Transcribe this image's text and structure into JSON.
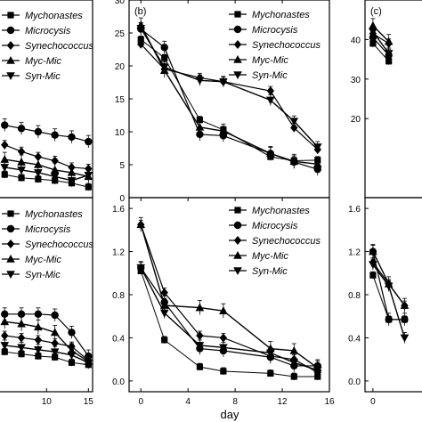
{
  "xlabel": "day",
  "marker_color": "#000000",
  "chart_data": [
    {
      "id": "left-top",
      "type": "line",
      "legend_position": "top-left",
      "x_ticks": [],
      "y_ticks": [],
      "series": [
        {
          "name": "Mychonastes",
          "marker": "square",
          "x": [
            5,
            7,
            9,
            11,
            13,
            15
          ],
          "y": [
            3.5,
            3.0,
            2.8,
            2.6,
            2.2,
            1.6
          ]
        },
        {
          "name": "Microcysis",
          "marker": "circle",
          "x": [
            5,
            7,
            9,
            11,
            13,
            15
          ],
          "y": [
            11.0,
            10.5,
            10.0,
            9.5,
            9.2,
            8.5
          ]
        },
        {
          "name": "Synechococcus",
          "marker": "diamond",
          "x": [
            5,
            7,
            9,
            11,
            13,
            15
          ],
          "y": [
            8.0,
            7.0,
            6.2,
            5.6,
            4.6,
            4.4
          ]
        },
        {
          "name": "Myc-Mic",
          "marker": "triangle-up",
          "x": [
            5,
            7,
            9,
            11,
            13,
            15
          ],
          "y": [
            5.8,
            5.4,
            5.0,
            4.2,
            3.8,
            3.2
          ]
        },
        {
          "name": "Syn-Mic",
          "marker": "triangle-down",
          "x": [
            5,
            7,
            9,
            11,
            13,
            15
          ],
          "y": [
            4.6,
            4.2,
            3.8,
            3.2,
            2.6,
            3.4
          ]
        }
      ]
    },
    {
      "id": "b",
      "panel_label": "(b)",
      "type": "line",
      "legend_position": "top-right",
      "ylim": [
        0,
        30
      ],
      "y_ticks": [
        "0",
        "5",
        "10",
        "15",
        "20",
        "25",
        "30"
      ],
      "series": [
        {
          "name": "Mychonastes",
          "marker": "square",
          "x": [
            0,
            2,
            5,
            7,
            11,
            13,
            15
          ],
          "y": [
            24.0,
            21.2,
            11.8,
            10.3,
            6.2,
            5.6,
            5.7
          ]
        },
        {
          "name": "Microcysis",
          "marker": "circle",
          "x": [
            0,
            2,
            5,
            7,
            11,
            13,
            15
          ],
          "y": [
            25.6,
            22.8,
            9.6,
            9.4,
            6.7,
            5.4,
            4.3
          ]
        },
        {
          "name": "Synechococcus",
          "marker": "diamond",
          "x": [
            0,
            2,
            5,
            7,
            11,
            13,
            15
          ],
          "y": [
            23.3,
            19.5,
            18.2,
            17.6,
            16.2,
            10.6,
            7.3
          ]
        },
        {
          "name": "Myc-Mic",
          "marker": "triangle-up",
          "x": [
            0,
            2,
            5,
            7,
            11,
            13,
            15
          ],
          "y": [
            26.2,
            19.3,
            10.7,
            10.1,
            6.7,
            5.5,
            5.1
          ]
        },
        {
          "name": "Syn-Mic",
          "marker": "triangle-down",
          "x": [
            0,
            2,
            5,
            7,
            11,
            13,
            15
          ],
          "y": [
            25.7,
            19.8,
            17.8,
            17.6,
            14.8,
            11.6,
            7.7
          ]
        }
      ]
    },
    {
      "id": "c",
      "panel_label": "(c)",
      "type": "line",
      "y_ticks": [
        "20",
        "30",
        "40"
      ],
      "series": [
        {
          "name": "Mychonastes",
          "marker": "square",
          "x": [
            0,
            2
          ],
          "y": [
            39.0,
            34.5
          ]
        },
        {
          "name": "Microcysis",
          "marker": "circle",
          "x": [
            0,
            2
          ],
          "y": [
            40.5,
            36.0
          ]
        },
        {
          "name": "Synechococcus",
          "marker": "diamond",
          "x": [
            0,
            2
          ],
          "y": [
            41.5,
            39.0
          ]
        },
        {
          "name": "Myc-Mic",
          "marker": "triangle-up",
          "x": [
            0,
            2
          ],
          "y": [
            43.5,
            39.5
          ]
        },
        {
          "name": "Syn-Mic",
          "marker": "triangle-down",
          "x": [
            0,
            2
          ],
          "y": [
            42.0,
            36.5
          ]
        }
      ]
    },
    {
      "id": "left-bottom",
      "type": "line",
      "legend_position": "top-left",
      "x_ticks": [
        "10",
        "15"
      ],
      "series": [
        {
          "name": "Mychonastes",
          "marker": "square",
          "x": [
            5,
            7,
            9,
            11,
            13,
            15
          ],
          "y": [
            0.27,
            0.25,
            0.23,
            0.22,
            0.17,
            0.15
          ]
        },
        {
          "name": "Microcysis",
          "marker": "circle",
          "x": [
            5,
            7,
            9,
            11,
            13,
            15
          ],
          "y": [
            0.62,
            0.62,
            0.62,
            0.61,
            0.45,
            0.23
          ]
        },
        {
          "name": "Synechococcus",
          "marker": "diamond",
          "x": [
            5,
            7,
            9,
            11,
            13,
            15
          ],
          "y": [
            0.42,
            0.4,
            0.38,
            0.35,
            0.32,
            0.19
          ]
        },
        {
          "name": "Myc-Mic",
          "marker": "triangle-up",
          "x": [
            5,
            7,
            9,
            11,
            13,
            15
          ],
          "y": [
            0.55,
            0.53,
            0.5,
            0.45,
            0.28,
            0.18
          ]
        },
        {
          "name": "Syn-Mic",
          "marker": "triangle-down",
          "x": [
            5,
            7,
            9,
            11,
            13,
            15
          ],
          "y": [
            0.33,
            0.31,
            0.29,
            0.27,
            0.24,
            0.17
          ]
        }
      ]
    },
    {
      "id": "e",
      "type": "line",
      "legend_position": "top-right",
      "ylim": [
        -0.1,
        1.7
      ],
      "xlim": [
        -1,
        16
      ],
      "y_ticks": [
        "0.0",
        "0.4",
        "0.8",
        "1.2",
        "1.6"
      ],
      "x_ticks": [
        "0",
        "4",
        "8",
        "12",
        "16"
      ],
      "series": [
        {
          "name": "Mychonastes",
          "marker": "square",
          "x": [
            0,
            2,
            5,
            7,
            11,
            13,
            15
          ],
          "y": [
            1.02,
            0.38,
            0.13,
            0.09,
            0.07,
            0.04,
            0.04
          ]
        },
        {
          "name": "Microcysis",
          "marker": "circle",
          "x": [
            0,
            2,
            5,
            7,
            11,
            13,
            15
          ],
          "y": [
            1.05,
            0.73,
            0.3,
            0.28,
            0.22,
            0.14,
            0.14
          ]
        },
        {
          "name": "Synechococcus",
          "marker": "diamond",
          "x": [
            0,
            2,
            5,
            7,
            11,
            13,
            15
          ],
          "y": [
            1.45,
            0.82,
            0.42,
            0.4,
            0.23,
            0.2,
            0.08
          ]
        },
        {
          "name": "Myc-Mic",
          "marker": "triangle-up",
          "x": [
            0,
            2,
            5,
            7,
            11,
            13,
            15
          ],
          "y": [
            1.45,
            0.7,
            0.68,
            0.65,
            0.3,
            0.28,
            0.12
          ]
        },
        {
          "name": "Syn-Mic",
          "marker": "triangle-down",
          "x": [
            0,
            2,
            5,
            7,
            11,
            13,
            15
          ],
          "y": [
            1.05,
            0.63,
            0.33,
            0.31,
            0.26,
            0.17,
            0.1
          ]
        }
      ]
    },
    {
      "id": "f",
      "type": "line",
      "ylim": [
        -0.1,
        1.7
      ],
      "y_ticks": [
        "0.0",
        "0.4",
        "0.8",
        "1.2",
        "1.6"
      ],
      "x_ticks": [
        "0"
      ],
      "series": [
        {
          "name": "Mychonastes",
          "marker": "square",
          "x": [
            0,
            2,
            4
          ],
          "y": [
            0.98,
            0.57,
            0.57
          ]
        },
        {
          "name": "Microcysis",
          "marker": "circle",
          "x": [
            0,
            2,
            4
          ],
          "y": [
            1.2,
            0.57,
            0.57
          ]
        },
        {
          "name": "Synechococcus",
          "marker": "diamond",
          "x": [
            0,
            2,
            4
          ],
          "y": [
            1.1,
            0.9,
            0.7
          ]
        },
        {
          "name": "Myc-Mic",
          "marker": "triangle-up",
          "x": [
            0,
            2,
            4
          ],
          "y": [
            1.2,
            0.9,
            0.7
          ]
        },
        {
          "name": "Syn-Mic",
          "marker": "triangle-down",
          "x": [
            0,
            2,
            4
          ],
          "y": [
            1.08,
            0.88,
            0.4
          ]
        }
      ]
    }
  ]
}
